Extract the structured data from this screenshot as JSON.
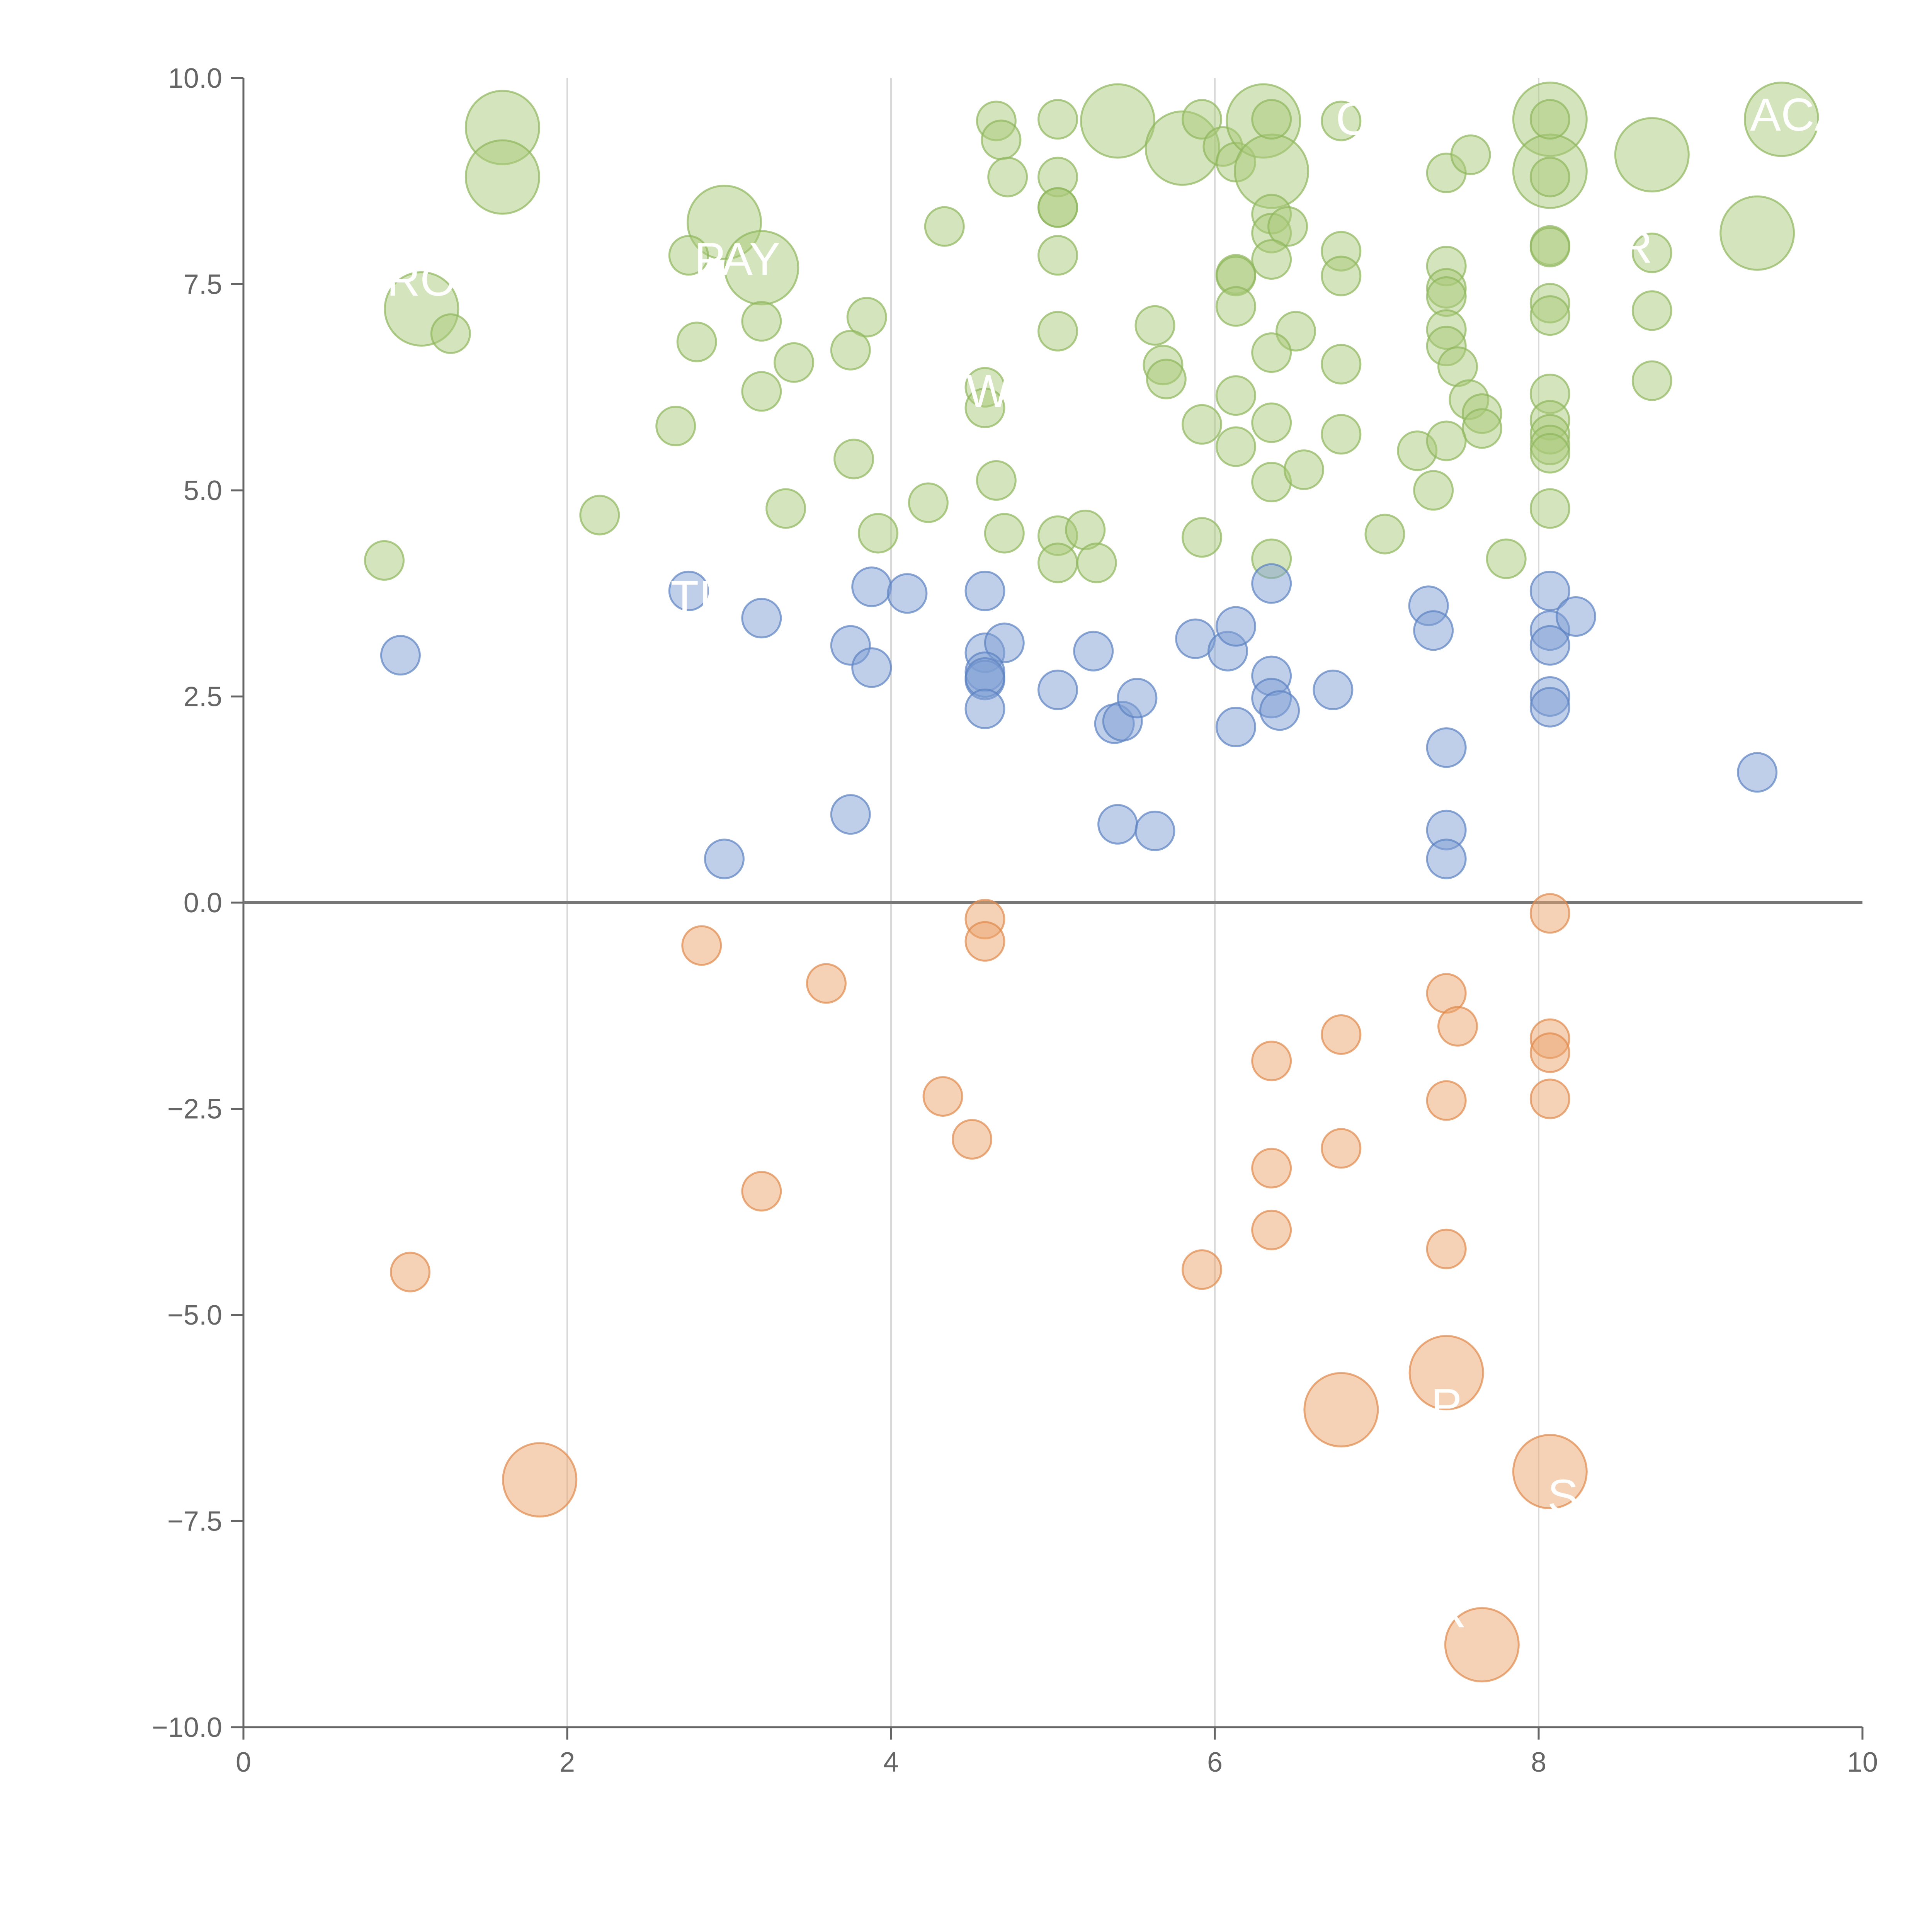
{
  "chart_data": {
    "type": "scatter",
    "title": "",
    "xlabel": "",
    "ylabel": "",
    "xlim": [
      0,
      10
    ],
    "ylim": [
      -10,
      10
    ],
    "x_ticks": [
      0,
      2,
      4,
      6,
      8,
      10
    ],
    "x_tick_labels": [
      "0",
      "2",
      "4",
      "6",
      "8",
      "10"
    ],
    "y_ticks": [
      10,
      7.5,
      5,
      2.5,
      0,
      -2.5,
      -5,
      -7.5,
      -10
    ],
    "y_tick_labels": [
      "10.0",
      "7.5",
      "5.0",
      "2.5",
      "0.0",
      "−2.5",
      "−5.0",
      "−7.5",
      "−10.0"
    ],
    "vertical_grid": true,
    "horizontal_grid": false,
    "zero_line": true,
    "colors": {
      "green": "#a9c97a",
      "green_stroke": "#8fb75c",
      "blue": "#7f9fd3",
      "blue_stroke": "#5b81c2",
      "orange": "#eba46e",
      "orange_stroke": "#e08a4c",
      "axis": "#666666",
      "grid": "#d9d9d9",
      "zero_line": "#777777",
      "label": "#ffffff"
    },
    "series": [
      {
        "name": "green",
        "points": [
          [
            1.6,
            9.4,
            "L"
          ],
          [
            1.6,
            8.8,
            "L"
          ],
          [
            1.1,
            7.2,
            "L"
          ],
          [
            1.28,
            6.9,
            "S"
          ],
          [
            0.87,
            4.15,
            "S"
          ],
          [
            2.2,
            4.7,
            "S"
          ],
          [
            2.97,
            8.25,
            "L"
          ],
          [
            3.2,
            7.7,
            "L"
          ],
          [
            2.75,
            7.85,
            "S"
          ],
          [
            3.2,
            7.05,
            "S"
          ],
          [
            2.8,
            6.8,
            "S"
          ],
          [
            3.4,
            6.55,
            "S"
          ],
          [
            3.2,
            6.2,
            "S"
          ],
          [
            2.67,
            5.78,
            "S"
          ],
          [
            3.35,
            4.78,
            "S"
          ],
          [
            3.85,
            7.1,
            "S"
          ],
          [
            3.75,
            6.7,
            "S"
          ],
          [
            3.77,
            5.38,
            "S"
          ],
          [
            3.92,
            4.48,
            "S"
          ],
          [
            4.23,
            4.85,
            "S"
          ],
          [
            4.33,
            8.2,
            "S"
          ],
          [
            4.65,
            9.48,
            "S"
          ],
          [
            4.68,
            9.25,
            "S"
          ],
          [
            4.72,
            8.8,
            "S"
          ],
          [
            4.58,
            6.25,
            "S"
          ],
          [
            4.58,
            6.0,
            "S"
          ],
          [
            4.65,
            5.12,
            "S"
          ],
          [
            4.7,
            4.48,
            "S"
          ],
          [
            5.03,
            9.5,
            "S"
          ],
          [
            5.03,
            8.8,
            "S"
          ],
          [
            5.03,
            8.43,
            "S"
          ],
          [
            5.03,
            8.43,
            "S"
          ],
          [
            5.03,
            7.85,
            "S"
          ],
          [
            5.03,
            6.93,
            "S"
          ],
          [
            5.03,
            4.45,
            "S"
          ],
          [
            5.03,
            4.12,
            "S"
          ],
          [
            5.2,
            4.52,
            "S"
          ],
          [
            5.27,
            4.12,
            "S"
          ],
          [
            5.4,
            9.48,
            "L"
          ],
          [
            5.8,
            9.15,
            "L"
          ],
          [
            5.92,
            9.5,
            "S"
          ],
          [
            6.05,
            9.17,
            "S"
          ],
          [
            6.13,
            8.98,
            "S"
          ],
          [
            5.63,
            7.0,
            "S"
          ],
          [
            5.68,
            6.52,
            "S"
          ],
          [
            5.7,
            6.35,
            "S"
          ],
          [
            5.92,
            5.8,
            "S"
          ],
          [
            5.92,
            4.43,
            "S"
          ],
          [
            6.3,
            9.48,
            "L"
          ],
          [
            6.35,
            8.87,
            "L"
          ],
          [
            6.35,
            9.5,
            "S"
          ],
          [
            6.35,
            8.35,
            "S"
          ],
          [
            6.35,
            8.12,
            "S"
          ],
          [
            6.45,
            8.2,
            "S"
          ],
          [
            6.35,
            7.8,
            "S"
          ],
          [
            6.13,
            7.62,
            "S"
          ],
          [
            6.13,
            7.6,
            "S"
          ],
          [
            6.13,
            7.23,
            "S"
          ],
          [
            6.5,
            6.93,
            "S"
          ],
          [
            6.35,
            6.67,
            "S"
          ],
          [
            6.13,
            6.15,
            "S"
          ],
          [
            6.35,
            5.82,
            "S"
          ],
          [
            6.13,
            5.53,
            "S"
          ],
          [
            6.35,
            5.1,
            "S"
          ],
          [
            6.55,
            5.25,
            "S"
          ],
          [
            6.35,
            4.17,
            "S"
          ],
          [
            6.78,
            9.48,
            "S"
          ],
          [
            6.78,
            7.9,
            "S"
          ],
          [
            6.78,
            7.6,
            "S"
          ],
          [
            6.78,
            6.53,
            "S"
          ],
          [
            6.78,
            5.68,
            "S"
          ],
          [
            7.05,
            4.47,
            "S"
          ],
          [
            7.25,
            5.48,
            "S"
          ],
          [
            7.35,
            5.0,
            "S"
          ],
          [
            7.43,
            8.85,
            "S"
          ],
          [
            7.58,
            9.07,
            "S"
          ],
          [
            7.43,
            7.72,
            "S"
          ],
          [
            7.43,
            7.45,
            "S"
          ],
          [
            7.43,
            7.35,
            "S"
          ],
          [
            7.43,
            6.95,
            "S"
          ],
          [
            7.43,
            6.75,
            "S"
          ],
          [
            7.5,
            6.5,
            "S"
          ],
          [
            7.57,
            6.1,
            "S"
          ],
          [
            7.65,
            5.93,
            "S"
          ],
          [
            7.65,
            5.75,
            "S"
          ],
          [
            7.43,
            5.6,
            "S"
          ],
          [
            7.8,
            4.17,
            "S"
          ],
          [
            8.07,
            9.5,
            "L"
          ],
          [
            8.07,
            8.87,
            "L"
          ],
          [
            8.07,
            9.5,
            "S"
          ],
          [
            8.07,
            8.8,
            "S"
          ],
          [
            8.07,
            7.97,
            "S"
          ],
          [
            8.07,
            7.95,
            "S"
          ],
          [
            8.07,
            7.27,
            "S"
          ],
          [
            8.07,
            7.12,
            "S"
          ],
          [
            8.07,
            6.17,
            "S"
          ],
          [
            8.07,
            5.85,
            "S"
          ],
          [
            8.07,
            5.68,
            "S"
          ],
          [
            8.07,
            5.55,
            "S"
          ],
          [
            8.07,
            5.45,
            "S"
          ],
          [
            8.07,
            4.78,
            "S"
          ],
          [
            8.7,
            9.07,
            "L"
          ],
          [
            8.7,
            7.88,
            "S"
          ],
          [
            8.7,
            7.18,
            "S"
          ],
          [
            8.7,
            6.33,
            "S"
          ],
          [
            9.35,
            8.12,
            "L"
          ],
          [
            9.5,
            9.5,
            "L"
          ]
        ]
      },
      {
        "name": "blue",
        "points": [
          [
            0.97,
            3.0,
            "S"
          ],
          [
            2.75,
            3.78,
            "S"
          ],
          [
            2.97,
            0.53,
            "S"
          ],
          [
            3.2,
            3.45,
            "S"
          ],
          [
            3.75,
            3.12,
            "S"
          ],
          [
            3.88,
            3.83,
            "S"
          ],
          [
            3.88,
            2.85,
            "S"
          ],
          [
            3.75,
            1.07,
            "S"
          ],
          [
            4.1,
            3.75,
            "S"
          ],
          [
            4.58,
            3.78,
            "S"
          ],
          [
            4.58,
            3.03,
            "S"
          ],
          [
            4.7,
            3.15,
            "S"
          ],
          [
            4.58,
            2.8,
            "S"
          ],
          [
            4.58,
            2.7,
            "S"
          ],
          [
            4.58,
            2.73,
            "S"
          ],
          [
            4.58,
            2.35,
            "S"
          ],
          [
            5.03,
            2.58,
            "S"
          ],
          [
            5.25,
            3.05,
            "S"
          ],
          [
            5.38,
            2.17,
            "S"
          ],
          [
            5.43,
            2.2,
            "S"
          ],
          [
            5.52,
            2.48,
            "S"
          ],
          [
            5.4,
            0.95,
            "S"
          ],
          [
            5.63,
            0.87,
            "S"
          ],
          [
            5.88,
            3.2,
            "S"
          ],
          [
            6.08,
            3.05,
            "S"
          ],
          [
            6.13,
            3.35,
            "S"
          ],
          [
            6.13,
            2.13,
            "S"
          ],
          [
            6.35,
            3.87,
            "S"
          ],
          [
            6.35,
            2.75,
            "S"
          ],
          [
            6.35,
            2.48,
            "S"
          ],
          [
            6.4,
            2.33,
            "S"
          ],
          [
            6.73,
            2.58,
            "S"
          ],
          [
            7.32,
            3.6,
            "S"
          ],
          [
            7.35,
            3.3,
            "S"
          ],
          [
            7.43,
            1.88,
            "S"
          ],
          [
            7.43,
            0.88,
            "S"
          ],
          [
            7.43,
            0.53,
            "S"
          ],
          [
            8.07,
            3.78,
            "S"
          ],
          [
            8.07,
            3.3,
            "S"
          ],
          [
            8.07,
            3.12,
            "S"
          ],
          [
            8.23,
            3.47,
            "S"
          ],
          [
            8.07,
            2.5,
            "S"
          ],
          [
            8.07,
            2.37,
            "S"
          ],
          [
            9.35,
            1.58,
            "S"
          ]
        ]
      },
      {
        "name": "orange",
        "points": [
          [
            1.03,
            -4.48,
            "S"
          ],
          [
            2.83,
            -0.52,
            "S"
          ],
          [
            3.6,
            -0.98,
            "S"
          ],
          [
            3.2,
            -3.5,
            "S"
          ],
          [
            4.32,
            -2.35,
            "S"
          ],
          [
            4.5,
            -2.87,
            "S"
          ],
          [
            4.58,
            -0.2,
            "S"
          ],
          [
            4.58,
            -0.47,
            "S"
          ],
          [
            1.83,
            -7.0,
            "L"
          ],
          [
            5.92,
            -4.45,
            "S"
          ],
          [
            6.35,
            -1.92,
            "S"
          ],
          [
            6.35,
            -3.22,
            "S"
          ],
          [
            6.35,
            -3.97,
            "S"
          ],
          [
            6.78,
            -1.6,
            "S"
          ],
          [
            6.78,
            -2.98,
            "S"
          ],
          [
            6.78,
            -6.15,
            "L"
          ],
          [
            7.43,
            -1.1,
            "S"
          ],
          [
            7.5,
            -1.5,
            "S"
          ],
          [
            7.43,
            -2.4,
            "S"
          ],
          [
            7.43,
            -4.2,
            "S"
          ],
          [
            7.43,
            -5.7,
            "L"
          ],
          [
            7.65,
            -9.0,
            "L"
          ],
          [
            8.07,
            -0.13,
            "S"
          ],
          [
            8.07,
            -1.65,
            "S"
          ],
          [
            8.07,
            -1.82,
            "S"
          ],
          [
            8.07,
            -2.38,
            "S"
          ],
          [
            8.07,
            -6.9,
            "L"
          ]
        ]
      }
    ],
    "annotations": [
      {
        "text": "ACA",
        "x": 9.6,
        "y": 9.55
      },
      {
        "text": "C",
        "x": 6.85,
        "y": 9.5
      },
      {
        "text": "PAY",
        "x": 3.05,
        "y": 7.8
      },
      {
        "text": "R",
        "x": 8.6,
        "y": 7.95
      },
      {
        "text": "RO",
        "x": 1.1,
        "y": 7.55
      },
      {
        "text": "W",
        "x": 4.6,
        "y": 6.2
      },
      {
        "text": "ATI",
        "x": 2.68,
        "y": 3.7
      },
      {
        "text": "P",
        "x": 7.43,
        "y": -6.1
      },
      {
        "text": "S",
        "x": 8.15,
        "y": -7.2
      },
      {
        "text": "R",
        "x": 7.45,
        "y": -8.6
      }
    ]
  }
}
